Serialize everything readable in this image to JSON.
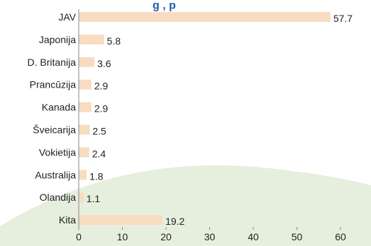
{
  "chart_data": {
    "type": "bar",
    "orientation": "horizontal",
    "title_fragment": "g      , p",
    "categories": [
      "JAV",
      "Japonija",
      "D. Britanija",
      "Prancūzija",
      "Kanada",
      "Šveicarija",
      "Vokietija",
      "Australija",
      "Olandija",
      "Kita"
    ],
    "values": [
      57.7,
      5.8,
      3.6,
      2.9,
      2.9,
      2.5,
      2.4,
      1.8,
      1.1,
      19.2
    ],
    "value_labels": [
      "57.7",
      "5.8",
      "3.6",
      "2.9",
      "2.9",
      "2.5",
      "2.4",
      "1.8",
      "1.1",
      "19.2"
    ],
    "xlim": [
      0,
      60
    ],
    "xticks": [
      "0",
      "10",
      "20",
      "30",
      "40",
      "50",
      "60"
    ],
    "grid": false,
    "xlabel": "",
    "ylabel": ""
  },
  "colors": {
    "bar": "#F8DCC1",
    "background_shape": "#E6EEDD",
    "title": "#1F5FA8",
    "axis": "#8A8A8A"
  }
}
